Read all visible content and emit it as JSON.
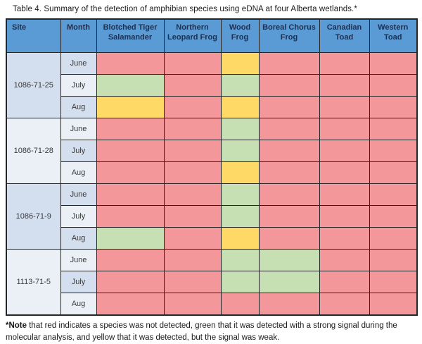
{
  "title": "Table 4.  Summary of the detection of amphibian species using eDNA at four Alberta wetlands.*",
  "columns": [
    "Site",
    "Month",
    "Blotched Tiger Salamander",
    "Northern Leopard Frog",
    "Wood Frog",
    "Boreal Chorus Frog",
    "Canadian Toad",
    "Western Toad"
  ],
  "legend": {
    "red": "species was not detected",
    "green": "detected with a strong signal during the molecular analysis",
    "yellow": "detected, but the signal was weak"
  },
  "colors": {
    "header_bg": "#5B9BD5",
    "header_text": "#1E2F50",
    "band_light": "#D3DFEE",
    "band_pale": "#EBF0F7",
    "not_detected": "#F4979A",
    "detected_strong": "#C6E0B4",
    "detected_weak": "#FFD966",
    "border": "#262626"
  },
  "sites": [
    {
      "site": "1086-71-25",
      "rows": [
        {
          "month": "June",
          "cells": [
            "not_detected",
            "not_detected",
            "weak",
            "not_detected",
            "not_detected",
            "not_detected"
          ]
        },
        {
          "month": "July",
          "cells": [
            "strong",
            "not_detected",
            "strong",
            "not_detected",
            "not_detected",
            "not_detected"
          ]
        },
        {
          "month": "Aug",
          "cells": [
            "weak",
            "not_detected",
            "weak",
            "not_detected",
            "not_detected",
            "not_detected"
          ]
        }
      ]
    },
    {
      "site": "1086-71-28",
      "rows": [
        {
          "month": "June",
          "cells": [
            "not_detected",
            "not_detected",
            "strong",
            "not_detected",
            "not_detected",
            "not_detected"
          ]
        },
        {
          "month": "July",
          "cells": [
            "not_detected",
            "not_detected",
            "strong",
            "not_detected",
            "not_detected",
            "not_detected"
          ]
        },
        {
          "month": "Aug",
          "cells": [
            "not_detected",
            "not_detected",
            "weak",
            "not_detected",
            "not_detected",
            "not_detected"
          ]
        }
      ]
    },
    {
      "site": "1086-71-9",
      "rows": [
        {
          "month": "June",
          "cells": [
            "not_detected",
            "not_detected",
            "strong",
            "not_detected",
            "not_detected",
            "not_detected"
          ]
        },
        {
          "month": "July",
          "cells": [
            "not_detected",
            "not_detected",
            "strong",
            "not_detected",
            "not_detected",
            "not_detected"
          ]
        },
        {
          "month": "Aug",
          "cells": [
            "strong",
            "not_detected",
            "weak",
            "not_detected",
            "not_detected",
            "not_detected"
          ]
        }
      ]
    },
    {
      "site": "1113-71-5",
      "rows": [
        {
          "month": "June",
          "cells": [
            "not_detected",
            "not_detected",
            "strong",
            "strong",
            "not_detected",
            "not_detected"
          ]
        },
        {
          "month": "July",
          "cells": [
            "not_detected",
            "not_detected",
            "strong",
            "strong",
            "not_detected",
            "not_detected"
          ]
        },
        {
          "month": "Aug",
          "cells": [
            "not_detected",
            "not_detected",
            "not_detected",
            "not_detected",
            "not_detected",
            "not_detected"
          ]
        }
      ]
    }
  ],
  "footnote": {
    "bold": "*Note",
    "text": " that red indicates a species was not detected, green that it was detected with a strong signal during the molecular analysis, and yellow that it was detected, but the signal was weak."
  }
}
